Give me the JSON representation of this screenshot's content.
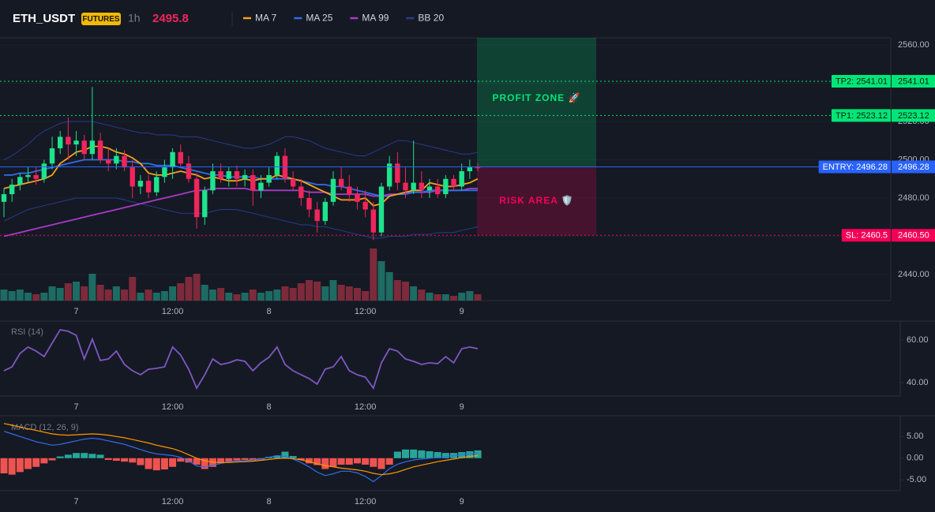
{
  "header": {
    "symbol": "ETH_USDT",
    "badge": "FUTURES",
    "interval": "1h",
    "price": 2495.8,
    "price_color": "#f0265a"
  },
  "chart_data": [
    {
      "type": "candlestick",
      "categories": [
        null,
        null,
        null,
        null,
        null,
        null,
        null,
        null,
        null,
        "7",
        null,
        null,
        null,
        null,
        null,
        null,
        null,
        null,
        null,
        null,
        null,
        "12:00",
        null,
        null,
        null,
        null,
        null,
        null,
        null,
        null,
        null,
        null,
        null,
        "8",
        null,
        null,
        null,
        null,
        null,
        null,
        null,
        null,
        null,
        null,
        null,
        "12:00",
        null,
        null,
        null,
        null,
        null,
        null,
        null,
        null,
        null,
        null,
        null,
        "9",
        null,
        null
      ],
      "open": [
        2478,
        2482,
        2487,
        2491,
        2492,
        2490,
        2498,
        2506,
        2512,
        2508,
        2510,
        2503,
        2510,
        2500,
        2498,
        2502,
        2496,
        2486,
        2489,
        2483,
        2491,
        2496,
        2504,
        2498,
        2490,
        2470,
        2484,
        2494,
        2490,
        2494,
        2490,
        2492,
        2484,
        2488,
        2492,
        2502,
        2490,
        2486,
        2480,
        2474,
        2468,
        2478,
        2490,
        2486,
        2482,
        2478,
        2474,
        2462,
        2486,
        2498,
        2488,
        2484,
        2488,
        2484,
        2486,
        2482,
        2490,
        2486,
        2494,
        2496
      ],
      "high": [
        2485,
        2490,
        2493,
        2496,
        2496,
        2500,
        2512,
        2515,
        2522,
        2515,
        2513,
        2538,
        2514,
        2506,
        2506,
        2505,
        2500,
        2492,
        2492,
        2494,
        2500,
        2506,
        2508,
        2502,
        2493,
        2486,
        2498,
        2498,
        2496,
        2497,
        2495,
        2495,
        2492,
        2496,
        2504,
        2506,
        2494,
        2490,
        2484,
        2478,
        2480,
        2494,
        2496,
        2492,
        2486,
        2484,
        2478,
        2488,
        2502,
        2504,
        2496,
        2510,
        2494,
        2490,
        2490,
        2492,
        2492,
        2498,
        2500,
        2498
      ],
      "low": [
        2470,
        2478,
        2484,
        2488,
        2487,
        2488,
        2495,
        2503,
        2500,
        2502,
        2500,
        2500,
        2498,
        2494,
        2495,
        2494,
        2480,
        2482,
        2480,
        2481,
        2488,
        2490,
        2496,
        2488,
        2464,
        2466,
        2482,
        2488,
        2486,
        2486,
        2486,
        2476,
        2480,
        2486,
        2490,
        2488,
        2484,
        2476,
        2470,
        2462,
        2466,
        2476,
        2484,
        2478,
        2474,
        2470,
        2458,
        2460,
        2484,
        2484,
        2480,
        2482,
        2480,
        2480,
        2480,
        2480,
        2484,
        2484,
        2490,
        2494
      ],
      "close": [
        2482,
        2487,
        2491,
        2492,
        2490,
        2498,
        2506,
        2512,
        2508,
        2510,
        2503,
        2510,
        2500,
        2498,
        2502,
        2496,
        2486,
        2489,
        2483,
        2491,
        2496,
        2504,
        2498,
        2490,
        2470,
        2484,
        2494,
        2490,
        2494,
        2490,
        2492,
        2484,
        2488,
        2492,
        2502,
        2490,
        2486,
        2480,
        2474,
        2468,
        2478,
        2490,
        2486,
        2482,
        2478,
        2474,
        2462,
        2486,
        2498,
        2488,
        2484,
        2488,
        2484,
        2486,
        2482,
        2490,
        2486,
        2494,
        2496,
        2495.8
      ],
      "up_color": "#1ee38b",
      "down_color": "#f0265a",
      "volume": {
        "values": [
          14,
          12,
          14,
          10,
          8,
          10,
          18,
          16,
          22,
          24,
          18,
          34,
          20,
          14,
          18,
          14,
          30,
          10,
          14,
          10,
          12,
          18,
          22,
          30,
          34,
          20,
          14,
          16,
          10,
          8,
          10,
          14,
          10,
          12,
          14,
          18,
          16,
          22,
          26,
          24,
          18,
          26,
          20,
          18,
          16,
          12,
          66,
          50,
          36,
          26,
          24,
          18,
          14,
          10,
          8,
          8,
          6,
          10,
          12,
          8
        ],
        "ylim": [
          0,
          100
        ],
        "up_color": "#1d6b62",
        "down_color": "#7d2a3a"
      },
      "series": [
        {
          "name": "MA 7",
          "color": "#f7a21b",
          "values": [
            2485,
            2486,
            2487,
            2488,
            2489,
            2490,
            2492,
            2498,
            2501,
            2504,
            2505,
            2507,
            2507,
            2506,
            2504,
            2503,
            2501,
            2498,
            2493,
            2492,
            2492,
            2493,
            2494,
            2493,
            2492,
            2490,
            2491,
            2490,
            2489,
            2489,
            2490,
            2489,
            2490,
            2490,
            2492,
            2491,
            2490,
            2489,
            2487,
            2485,
            2483,
            2481,
            2479,
            2479,
            2479,
            2480,
            2476,
            2477,
            2481,
            2482,
            2483,
            2484,
            2484,
            2488,
            2487,
            2486,
            2486,
            2487,
            2488,
            2490
          ]
        },
        {
          "name": "MA 25",
          "color": "#2f6fed",
          "values": [
            2492,
            2492,
            2493,
            2493,
            2494,
            2495,
            2496,
            2497,
            2498,
            2499,
            2500,
            2500,
            2500,
            2500,
            2500,
            2499,
            2499,
            2498,
            2498,
            2497,
            2497,
            2497,
            2496,
            2495,
            2494,
            2493,
            2492,
            2492,
            2491,
            2491,
            2491,
            2491,
            2490,
            2490,
            2490,
            2490,
            2490,
            2489,
            2488,
            2487,
            2487,
            2486,
            2486,
            2485,
            2484,
            2483,
            2482,
            2481,
            2481,
            2482,
            2482,
            2483,
            2483,
            2484,
            2484,
            2484,
            2484,
            2484,
            2484,
            2484
          ]
        },
        {
          "name": "MA 99",
          "color": "#a73bc4",
          "values": [
            2460,
            2461,
            2462,
            2463,
            2464,
            2465,
            2466,
            2467,
            2468,
            2469,
            2470,
            2471,
            2472,
            2473,
            2474,
            2475,
            2476,
            2477,
            2478,
            2479,
            2480,
            2481,
            2482,
            2483,
            2484,
            2484,
            2485,
            2485,
            2485,
            2485,
            2485,
            2484,
            2484,
            2484,
            2484,
            2484,
            2484,
            2484,
            2483,
            2483,
            2483,
            2482,
            2482,
            2482,
            2482,
            2482,
            2481,
            2481,
            2482,
            2482,
            2483,
            2483,
            2483,
            2483,
            2484,
            2484,
            2484,
            2484,
            2485,
            2485
          ]
        },
        {
          "name": "BB 20",
          "color": "#283c8c",
          "upper": [
            2500,
            2502,
            2505,
            2508,
            2512,
            2515,
            2517,
            2519,
            2520,
            2520,
            2520,
            2520,
            2519,
            2518,
            2517,
            2516,
            2515,
            2514,
            2514,
            2513,
            2513,
            2513,
            2512,
            2512,
            2512,
            2511,
            2510,
            2509,
            2508,
            2507,
            2506,
            2506,
            2507,
            2508,
            2510,
            2512,
            2512,
            2511,
            2510,
            2508,
            2506,
            2505,
            2504,
            2503,
            2502,
            2502,
            2504,
            2506,
            2508,
            2510,
            2510,
            2509,
            2508,
            2507,
            2506,
            2505,
            2504,
            2503,
            2503,
            2504
          ],
          "lower": [
            2468,
            2470,
            2472,
            2474,
            2475,
            2476,
            2477,
            2478,
            2479,
            2480,
            2480,
            2480,
            2480,
            2480,
            2480,
            2479,
            2478,
            2477,
            2476,
            2475,
            2474,
            2473,
            2472,
            2472,
            2472,
            2472,
            2473,
            2474,
            2474,
            2474,
            2473,
            2472,
            2471,
            2470,
            2469,
            2468,
            2467,
            2466,
            2466,
            2465,
            2465,
            2464,
            2463,
            2462,
            2461,
            2460,
            2459,
            2459,
            2460,
            2460,
            2460,
            2461,
            2461,
            2461,
            2462,
            2462,
            2462,
            2463,
            2464,
            2465
          ]
        }
      ],
      "ylim": [
        2426.4,
        2563.7
      ],
      "yticks": [
        {
          "value": 2440,
          "label": "2440.00"
        },
        {
          "value": 2460,
          "label": "2460.00"
        },
        {
          "value": 2480,
          "label": "2480.00"
        },
        {
          "value": 2500,
          "label": "2500.00"
        },
        {
          "value": 2520,
          "label": "2520.00"
        },
        {
          "value": 2540,
          "label": "2540.00"
        },
        {
          "value": 2560,
          "label": "2560.00"
        }
      ],
      "grid": true,
      "levels": [
        {
          "label": "TP2: 2541.01",
          "axis_label": "2541.01",
          "value": 2541.01,
          "color": "#00e676",
          "text_color": "#0b1f14",
          "style": "dotted"
        },
        {
          "label": "TP1: 2523.12",
          "axis_label": "2523.12",
          "value": 2523.12,
          "color": "#00e676",
          "text_color": "#0b1f14",
          "style": "dotted"
        },
        {
          "label": "ENTRY: 2496.28",
          "axis_label": "2496.28",
          "value": 2496.28,
          "color": "#2962ff",
          "text_color": "#ffffff",
          "style": "solid"
        },
        {
          "label": "SL: 2460.5",
          "axis_label": "2460.50",
          "value": 2460.5,
          "color": "#f50057",
          "text_color": "#ffffff",
          "style": "dotted"
        }
      ],
      "zones": [
        {
          "label": "PROFIT ZONE 🚀",
          "color": "#00e676"
        },
        {
          "label": "RISK AREA 🛡️",
          "color": "#f50057"
        }
      ]
    },
    {
      "type": "line",
      "title": "RSI (14)",
      "color": "#7e57c2",
      "values": [
        45.6,
        47.4,
        53.7,
        56.7,
        54.8,
        52.2,
        58.5,
        64.8,
        64.1,
        62.2,
        51.1,
        60.4,
        50.4,
        51.1,
        54.8,
        48.5,
        45.6,
        43.7,
        46.3,
        46.7,
        47.4,
        56.7,
        53,
        46.3,
        37.4,
        43.7,
        51.1,
        48.5,
        49.3,
        50.7,
        50,
        45.6,
        49.3,
        51.9,
        56.7,
        48.5,
        45.6,
        43.7,
        41.9,
        39.3,
        46.3,
        47.4,
        52.2,
        45.6,
        43.7,
        42.6,
        37.4,
        49.3,
        55.9,
        54.8,
        51.1,
        50,
        48.5,
        49.3,
        48.9,
        52.2,
        49.3,
        55.9,
        56.7,
        55.9
      ],
      "ylim": [
        33.7,
        68.5
      ],
      "yticks": [
        {
          "value": 40,
          "label": "40.00"
        },
        {
          "value": 60,
          "label": "60.00"
        }
      ]
    },
    {
      "type": "macd",
      "title": "MACD (12, 26, 9)",
      "lines": [
        {
          "color": "#2f6fed",
          "values": [
            6.2,
            5.6,
            5.0,
            4.4,
            3.8,
            3.4,
            3.0,
            3.2,
            3.6,
            4.0,
            4.4,
            4.6,
            4.4,
            4.0,
            3.6,
            3.2,
            2.6,
            2.0,
            1.4,
            1.0,
            0.8,
            0.6,
            0.2,
            -0.6,
            -1.8,
            -2.0,
            -1.6,
            -1.2,
            -0.8,
            -0.6,
            -0.6,
            -0.4,
            -0.2,
            0.2,
            0.6,
            0.4,
            -0.2,
            -1.0,
            -2.0,
            -3.2,
            -4.0,
            -3.6,
            -3.0,
            -3.0,
            -3.4,
            -4.2,
            -5.4,
            -4.0,
            -2.4,
            -1.4,
            -0.8,
            -0.4,
            -0.2,
            0,
            0.2,
            0.4,
            0.6,
            0.8,
            1.0,
            1.2
          ]
        },
        {
          "color": "#ff9800",
          "values": [
            8.0,
            7.6,
            7.2,
            6.8,
            6.4,
            6.0,
            5.6,
            5.4,
            5.3,
            5.4,
            5.5,
            5.6,
            5.5,
            5.3,
            5.0,
            4.7,
            4.3,
            3.9,
            3.5,
            3.0,
            2.6,
            2.2,
            1.6,
            0.8,
            0,
            -0.6,
            -0.9,
            -1.0,
            -1.0,
            -0.9,
            -0.8,
            -0.7,
            -0.5,
            -0.3,
            -0.1,
            0,
            -0.1,
            -0.4,
            -0.8,
            -1.3,
            -1.7,
            -2.0,
            -2.3,
            -2.5,
            -2.7,
            -3.0,
            -3.5,
            -3.8,
            -3.6,
            -3.2,
            -2.6,
            -2.0,
            -1.6,
            -1.2,
            -0.8,
            -0.5,
            -0.2,
            0.1,
            0.4,
            0.6
          ]
        }
      ],
      "histogram": {
        "values": [
          -3.5,
          -3.8,
          -3.2,
          -2.5,
          -2.0,
          -1.2,
          -0.5,
          0.4,
          0.8,
          1.2,
          1.2,
          1.0,
          0.8,
          -0.4,
          -0.6,
          -0.8,
          -1.0,
          -1.6,
          -2.5,
          -2.8,
          -2.6,
          -2.0,
          -0.8,
          -1.0,
          -1.5,
          -2.5,
          -2.0,
          -1.2,
          -0.8,
          -0.5,
          -0.4,
          -0.5,
          -0.3,
          0.3,
          0.6,
          1.5,
          0.5,
          -0.4,
          -1.2,
          -1.6,
          -2.5,
          -2.0,
          -1.5,
          -1.5,
          -1.2,
          -1.5,
          -2.0,
          -2.5,
          -1.5,
          1.5,
          2.0,
          2.0,
          1.8,
          1.6,
          1.4,
          1.2,
          1.2,
          1.4,
          1.6,
          1.8
        ],
        "up_color": "#26a69a",
        "down_color": "#ef5350"
      },
      "ylim": [
        -7.5,
        9.6
      ],
      "yticks": [
        {
          "value": -5,
          "label": "-5.00"
        },
        {
          "value": 0,
          "label": "0.00"
        },
        {
          "value": 5,
          "label": "5.00"
        }
      ]
    }
  ]
}
